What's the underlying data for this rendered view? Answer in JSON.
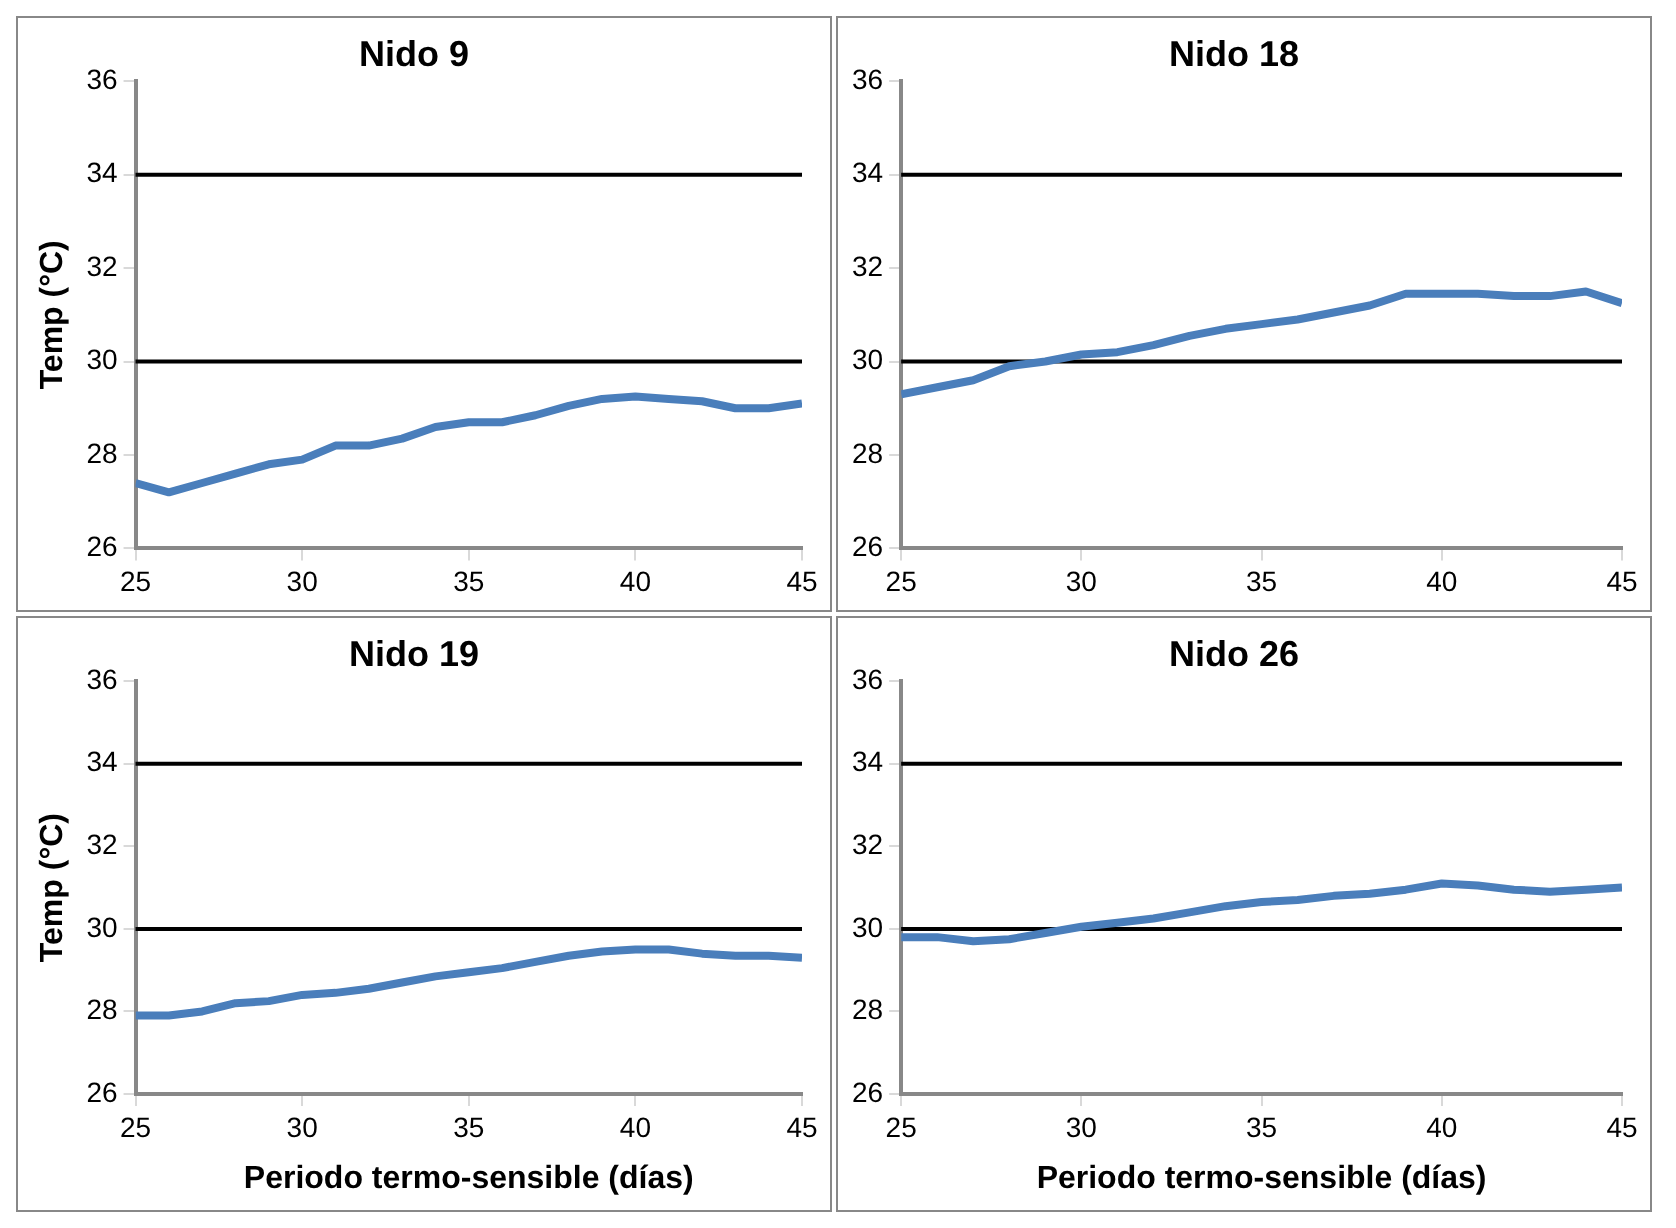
{
  "chart_data": [
    {
      "type": "line",
      "title": "Nido 9",
      "ylabel": "Temp (°C)",
      "x": [
        25,
        26,
        27,
        28,
        29,
        30,
        31,
        32,
        33,
        34,
        35,
        36,
        37,
        38,
        39,
        40,
        41,
        42,
        43,
        44,
        45
      ],
      "series": [
        {
          "color": "#4a7ebb",
          "values": [
            27.4,
            27.2,
            27.4,
            27.6,
            27.8,
            27.9,
            28.2,
            28.2,
            28.35,
            28.6,
            28.7,
            28.7,
            28.85,
            29.05,
            29.2,
            29.25,
            29.2,
            29.15,
            29.0,
            29.0,
            29.1
          ]
        }
      ],
      "xlim": [
        25,
        45
      ],
      "xticks": [
        25,
        30,
        35,
        40,
        45
      ],
      "ylim": [
        26,
        36
      ],
      "yticks": [
        26,
        28,
        30,
        32,
        34,
        36
      ],
      "ref_lines": [
        {
          "axis": "y",
          "value": 30,
          "color": "#000000"
        },
        {
          "axis": "y",
          "value": 34,
          "color": "#000000"
        }
      ],
      "legend": false
    },
    {
      "type": "line",
      "title": "Nido 18",
      "x": [
        25,
        26,
        27,
        28,
        29,
        30,
        31,
        32,
        33,
        34,
        35,
        36,
        37,
        38,
        39,
        40,
        41,
        42,
        43,
        44,
        45
      ],
      "series": [
        {
          "color": "#4a7ebb",
          "values": [
            29.3,
            29.45,
            29.6,
            29.9,
            30.0,
            30.15,
            30.2,
            30.35,
            30.55,
            30.7,
            30.8,
            30.9,
            31.05,
            31.2,
            31.45,
            31.45,
            31.45,
            31.4,
            31.4,
            31.5,
            31.25
          ]
        }
      ],
      "xlim": [
        25,
        45
      ],
      "xticks": [
        25,
        30,
        35,
        40,
        45
      ],
      "ylim": [
        26,
        36
      ],
      "yticks": [
        26,
        28,
        30,
        32,
        34,
        36
      ],
      "ref_lines": [
        {
          "axis": "y",
          "value": 30,
          "color": "#000000"
        },
        {
          "axis": "y",
          "value": 34,
          "color": "#000000"
        }
      ],
      "legend": false
    },
    {
      "type": "line",
      "title": "Nido 19",
      "ylabel": "Temp (°C)",
      "xlabel": "Periodo termo-sensible (días)",
      "x": [
        25,
        26,
        27,
        28,
        29,
        30,
        31,
        32,
        33,
        34,
        35,
        36,
        37,
        38,
        39,
        40,
        41,
        42,
        43,
        44,
        45
      ],
      "series": [
        {
          "color": "#4a7ebb",
          "values": [
            27.9,
            27.9,
            28.0,
            28.2,
            28.25,
            28.4,
            28.45,
            28.55,
            28.7,
            28.85,
            28.95,
            29.05,
            29.2,
            29.35,
            29.45,
            29.5,
            29.5,
            29.4,
            29.35,
            29.35,
            29.3
          ]
        }
      ],
      "xlim": [
        25,
        45
      ],
      "xticks": [
        25,
        30,
        35,
        40,
        45
      ],
      "ylim": [
        26,
        36
      ],
      "yticks": [
        26,
        28,
        30,
        32,
        34,
        36
      ],
      "ref_lines": [
        {
          "axis": "y",
          "value": 30,
          "color": "#000000"
        },
        {
          "axis": "y",
          "value": 34,
          "color": "#000000"
        }
      ],
      "legend": false
    },
    {
      "type": "line",
      "title": "Nido 26",
      "xlabel": "Periodo termo-sensible (días)",
      "x": [
        25,
        26,
        27,
        28,
        29,
        30,
        31,
        32,
        33,
        34,
        35,
        36,
        37,
        38,
        39,
        40,
        41,
        42,
        43,
        44,
        45
      ],
      "series": [
        {
          "color": "#4a7ebb",
          "values": [
            29.8,
            29.8,
            29.7,
            29.75,
            29.9,
            30.05,
            30.15,
            30.25,
            30.4,
            30.55,
            30.65,
            30.7,
            30.8,
            30.85,
            30.95,
            31.1,
            31.05,
            30.95,
            30.9,
            30.95,
            31.0
          ]
        }
      ],
      "xlim": [
        25,
        45
      ],
      "xticks": [
        25,
        30,
        35,
        40,
        45
      ],
      "ylim": [
        26,
        36
      ],
      "yticks": [
        26,
        28,
        30,
        32,
        34,
        36
      ],
      "ref_lines": [
        {
          "axis": "y",
          "value": 30,
          "color": "#000000"
        },
        {
          "axis": "y",
          "value": 34,
          "color": "#000000"
        }
      ],
      "legend": false
    }
  ]
}
